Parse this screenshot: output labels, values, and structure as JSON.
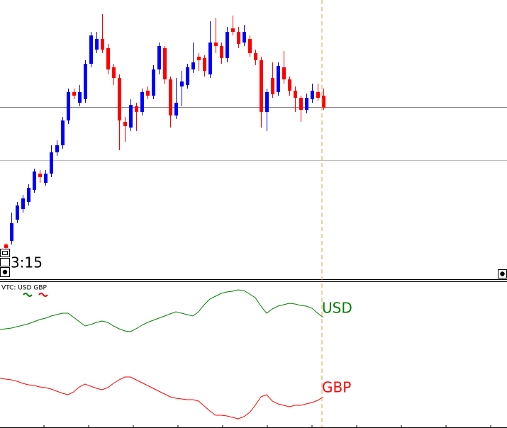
{
  "chart_data": [
    {
      "type": "candlestick",
      "timer": "3:15",
      "ylim": [
        0,
        395
      ],
      "up_color": "#0000ff",
      "down_color": "#ff0000",
      "levels": [
        {
          "value": 244,
          "color": "#808080"
        },
        {
          "value": 169,
          "color": "#c0c0c0"
        }
      ],
      "open": [
        50,
        55,
        85,
        100,
        110,
        127,
        150,
        137,
        150,
        180,
        190,
        225,
        265,
        250,
        255,
        305,
        325,
        340,
        327,
        300,
        285,
        223,
        215,
        245,
        237,
        267,
        260,
        297,
        327,
        283,
        232,
        273,
        275,
        297,
        315,
        313,
        290,
        335,
        330,
        313,
        355,
        350,
        335,
        340,
        320,
        310,
        237,
        285,
        265,
        300,
        283,
        267,
        257,
        240,
        255,
        265,
        260
      ],
      "high": [
        52,
        95,
        110,
        120,
        135,
        157,
        155,
        155,
        190,
        197,
        230,
        270,
        270,
        275,
        310,
        350,
        350,
        375,
        333,
        305,
        290,
        230,
        255,
        250,
        270,
        273,
        303,
        335,
        330,
        287,
        285,
        295,
        305,
        335,
        320,
        317,
        365,
        370,
        335,
        357,
        373,
        357,
        360,
        345,
        325,
        315,
        270,
        307,
        307,
        323,
        287,
        273,
        260,
        263,
        277,
        277,
        270
      ],
      "low": [
        42,
        50,
        80,
        95,
        105,
        123,
        137,
        133,
        145,
        175,
        185,
        220,
        255,
        245,
        250,
        300,
        320,
        320,
        290,
        275,
        183,
        195,
        210,
        210,
        232,
        255,
        255,
        290,
        277,
        215,
        227,
        245,
        270,
        292,
        295,
        287,
        285,
        320,
        305,
        307,
        345,
        327,
        330,
        315,
        303,
        215,
        210,
        257,
        260,
        277,
        260,
        237,
        223,
        235,
        250,
        253,
        240
      ],
      "close": [
        45,
        80,
        105,
        115,
        130,
        153,
        145,
        150,
        180,
        190,
        225,
        265,
        260,
        265,
        305,
        345,
        340,
        325,
        297,
        285,
        225,
        217,
        247,
        237,
        265,
        260,
        297,
        330,
        283,
        232,
        250,
        280,
        300,
        307,
        310,
        295,
        335,
        330,
        313,
        350,
        350,
        333,
        350,
        320,
        310,
        237,
        265,
        262,
        302,
        283,
        267,
        257,
        240,
        257,
        267,
        257,
        243
      ]
    },
    {
      "type": "line",
      "title": "VTC: USD GBP",
      "ylim": [
        0,
        207
      ],
      "series": [
        {
          "name": "USD",
          "color": "#008000",
          "values": [
            139,
            141,
            143,
            145,
            147,
            150,
            153,
            155,
            158,
            160,
            162,
            162,
            156,
            150,
            144,
            146,
            149,
            151,
            149,
            144,
            140,
            137,
            136,
            140,
            145,
            149,
            152,
            155,
            158,
            161,
            164,
            162,
            160,
            158,
            164,
            174,
            182,
            186,
            190,
            192,
            193,
            195,
            194,
            189,
            184,
            172,
            162,
            168,
            172,
            174,
            176,
            175,
            173,
            172,
            169,
            162,
            156
          ]
        },
        {
          "name": "GBP",
          "color": "#ff0000",
          "values": [
            70,
            68,
            66,
            63,
            61,
            60,
            58,
            57,
            55,
            52,
            49,
            47,
            51,
            58,
            62,
            59,
            56,
            54,
            57,
            63,
            68,
            72,
            72,
            68,
            64,
            60,
            56,
            52,
            48,
            44,
            42,
            41,
            40,
            40,
            38,
            31,
            24,
            18,
            18,
            17,
            15,
            13,
            16,
            22,
            32,
            44,
            47,
            38,
            34,
            32,
            30,
            32,
            32,
            34,
            36,
            39,
            44
          ]
        }
      ]
    }
  ]
}
